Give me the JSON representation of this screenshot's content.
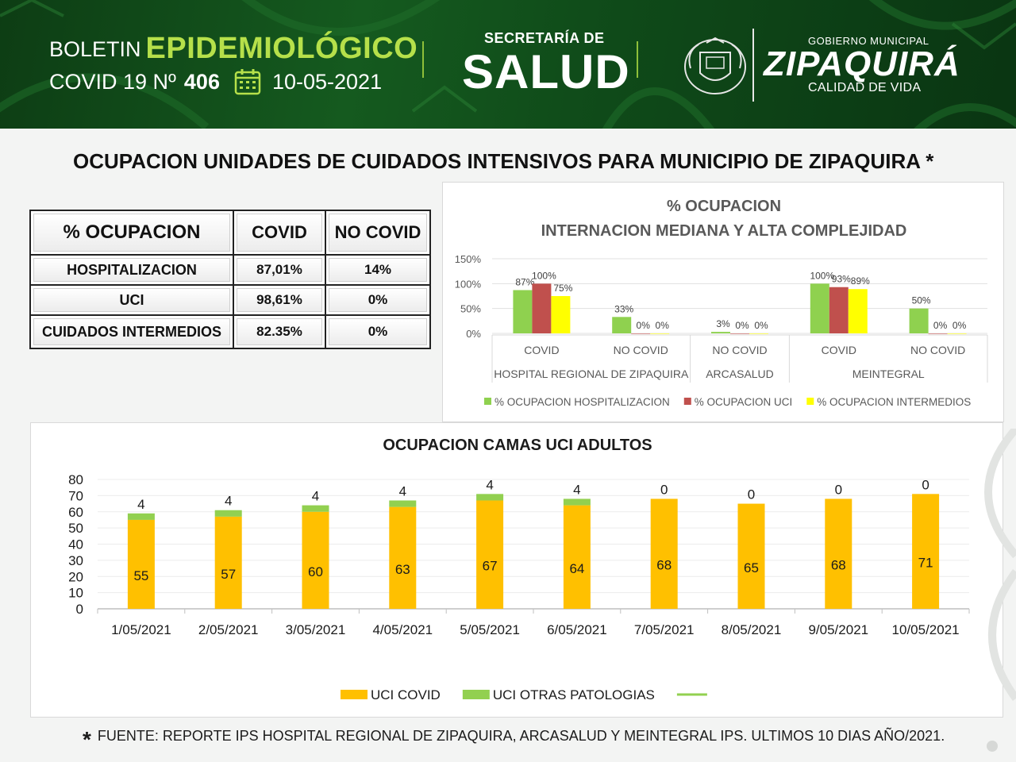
{
  "header": {
    "boletin_word": "BOLETIN",
    "boletin_title": "EPIDEMIOLÓGICO",
    "covid_label": "COVID 19 Nº",
    "bulletin_number": "406",
    "date": "10-05-2021",
    "secretaria": "SECRETARÍA DE",
    "salud": "SALUD",
    "gobierno": "GOBIERNO MUNICIPAL",
    "municipio": "ZIPAQUIRÁ",
    "lema": "CALIDAD DE VIDA",
    "colors": {
      "dark_green": "#0d3d14",
      "lime": "#b6e04a"
    }
  },
  "main_title": "OCUPACION UNIDADES DE CUIDADOS INTENSIVOS PARA MUNICIPIO DE ZIPAQUIRA *",
  "table": {
    "header": [
      "% OCUPACION",
      "COVID",
      "NO COVID"
    ],
    "rows": [
      {
        "label": "HOSPITALIZACION",
        "covid": "87,01%",
        "no_covid": "14%"
      },
      {
        "label": "UCI",
        "covid": "98,61%",
        "no_covid": "0%"
      },
      {
        "label": "CUIDADOS INTERMEDIOS",
        "covid": "82.35%",
        "no_covid": "0%"
      }
    ]
  },
  "chart_data": [
    {
      "type": "bar",
      "title": "% OCUPACION",
      "subtitle": "INTERNACION MEDIANA Y ALTA COMPLEJIDAD",
      "categories": [
        "COVID",
        "NO COVID",
        "NO COVID",
        "COVID",
        "NO COVID"
      ],
      "groups": [
        {
          "name": "HOSPITAL REGIONAL DE ZIPAQUIRA",
          "span": [
            0,
            1
          ]
        },
        {
          "name": "ARCASALUD",
          "span": [
            2,
            2
          ]
        },
        {
          "name": "MEINTEGRAL",
          "span": [
            3,
            4
          ]
        }
      ],
      "series": [
        {
          "name": "% OCUPACION  HOSPITALIZACION",
          "color": "#8fd14f",
          "values": [
            87,
            33,
            3,
            100,
            50
          ],
          "labels": [
            "87%",
            "33%",
            "3%",
            "100%",
            "50%"
          ]
        },
        {
          "name": "% OCUPACION  UCI",
          "color": "#c0504d",
          "values": [
            100,
            0,
            0,
            93,
            0
          ],
          "labels": [
            "100%",
            "0%",
            "0%",
            "93%",
            "0%"
          ]
        },
        {
          "name": "% OCUPACION  INTERMEDIOS",
          "color": "#ffff00",
          "values": [
            75,
            0,
            0,
            89,
            0
          ],
          "labels": [
            "75%",
            "0%",
            "0%",
            "89%",
            "0%"
          ]
        }
      ],
      "yticks": [
        "150%",
        "100%",
        "50%",
        "0%"
      ],
      "ylim": [
        0,
        150
      ],
      "legend": "bottom"
    },
    {
      "type": "bar",
      "stacked": true,
      "title": "OCUPACION  CAMAS UCI ADULTOS",
      "categories": [
        "1/05/2021",
        "2/05/2021",
        "3/05/2021",
        "4/05/2021",
        "5/05/2021",
        "6/05/2021",
        "7/05/2021",
        "8/05/2021",
        "9/05/2021",
        "10/05/2021"
      ],
      "series": [
        {
          "name": "UCI COVID",
          "color": "#ffc000",
          "values": [
            55,
            57,
            60,
            63,
            67,
            64,
            68,
            65,
            68,
            71
          ]
        },
        {
          "name": "UCI OTRAS PATOLOGIAS",
          "color": "#92d050",
          "values": [
            4,
            4,
            4,
            4,
            4,
            4,
            0,
            0,
            0,
            0
          ]
        }
      ],
      "yticks": [
        "80",
        "70",
        "60",
        "50",
        "40",
        "30",
        "20",
        "10",
        "0"
      ],
      "ylim": [
        0,
        80
      ],
      "legend": "bottom"
    }
  ],
  "footnote": {
    "star": "*",
    "text": "FUENTE: REPORTE IPS HOSPITAL REGIONAL DE ZIPAQUIRA, ARCASALUD Y MEINTEGRAL IPS.  ULTIMOS 10 DIAS AÑO/2021."
  }
}
